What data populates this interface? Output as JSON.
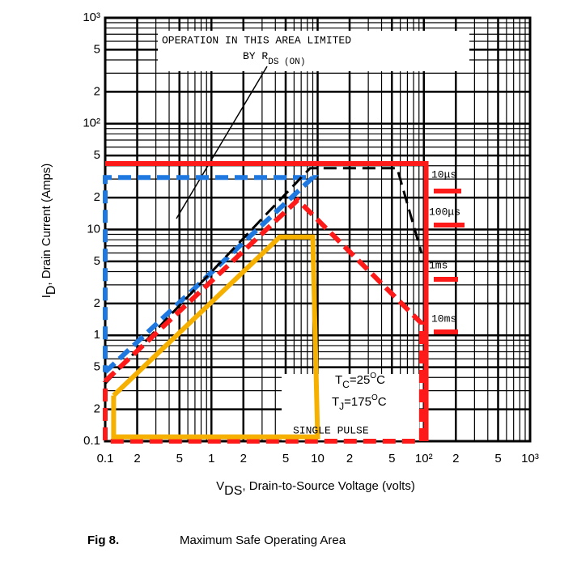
{
  "chart_data": {
    "type": "line",
    "xlog": true,
    "ylog": true,
    "grid": true,
    "xlim": [
      0.1,
      1000
    ],
    "ylim": [
      0.1,
      1000
    ],
    "xticks": [
      0.1,
      {
        "value": 0.2,
        "label": "2"
      },
      {
        "value": 0.5,
        "label": "5"
      },
      1,
      2,
      5,
      10,
      {
        "value": 20,
        "label": "2"
      },
      {
        "value": 50,
        "label": "5"
      },
      {
        "value": 100,
        "label": "10²"
      },
      {
        "value": 200,
        "label": "2"
      },
      {
        "value": 500,
        "label": "5"
      },
      {
        "value": 1000,
        "label": "10³"
      }
    ],
    "yticks": [
      0.1,
      {
        "value": 0.2,
        "label": "2"
      },
      {
        "value": 0.5,
        "label": "5"
      },
      1,
      2,
      5,
      10,
      {
        "value": 20,
        "label": "2"
      },
      {
        "value": 50,
        "label": "5"
      },
      {
        "value": 100,
        "label": "10²"
      },
      {
        "value": 200,
        "label": "2"
      },
      {
        "value": 500,
        "label": "5"
      },
      {
        "value": 1000,
        "label": "10³"
      }
    ],
    "x_label": [
      "V",
      "DS",
      ", Drain-to-Source Voltage (volts)"
    ],
    "y_label": [
      "I",
      "D",
      ", Drain Current (Amps)"
    ],
    "caption": [
      "Fig 8.",
      "Maximum Safe Operating Area"
    ],
    "annotations": {
      "limit": [
        "OPERATION IN THIS AREA LIMITED",
        "BY R",
        "DS (ON)"
      ],
      "tc": [
        "T",
        "C",
        "=25",
        "O",
        "C"
      ],
      "tj": [
        "T",
        "J",
        "=175",
        "O",
        "C"
      ],
      "pulse": "SINGLE PULSE",
      "times": [
        "10μs",
        "100μs",
        "1ms",
        "10ms"
      ]
    },
    "series": [
      {
        "color": "#ff1a1a",
        "style": "solid",
        "x": [
          0.1,
          105,
          105
        ],
        "values": [
          42,
          42,
          0.1
        ]
      },
      {
        "color": "#1e78e0",
        "style": "dashed",
        "x": [
          0.1,
          9,
          0.1,
          0.1
        ],
        "values": [
          0.45,
          31,
          31,
          0.45
        ]
      },
      {
        "color": "#000000",
        "style": "dashed",
        "x": [
          0.1,
          8.5,
          56,
          95
        ],
        "values": [
          0.35,
          38,
          38,
          6
        ]
      },
      {
        "color": "#ff1a1a",
        "style": "dashed",
        "x": [
          0.1,
          6.5,
          95,
          95,
          0.1,
          0.1
        ],
        "values": [
          0.37,
          19,
          1.3,
          0.1,
          0.1,
          0.37
        ]
      },
      {
        "color": "#f5b000",
        "style": "solid",
        "x": [
          0.12,
          0.12,
          10,
          9,
          4.4,
          0.12
        ],
        "values": [
          0.27,
          0.11,
          0.11,
          8.5,
          8.5,
          0.27
        ]
      }
    ]
  }
}
